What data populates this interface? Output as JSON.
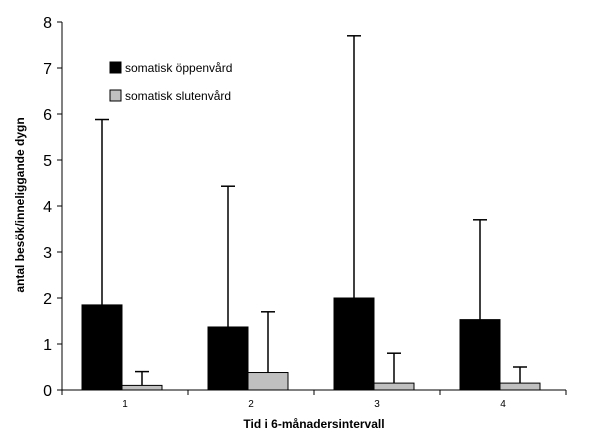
{
  "chart_data": {
    "type": "bar",
    "title": "",
    "xlabel": "Tid i 6-månadersintervall",
    "ylabel": "antal besök/inneliggande dygn",
    "categories": [
      "1",
      "2",
      "3",
      "4"
    ],
    "ylim": [
      0,
      8
    ],
    "yticks": [
      "0",
      "1",
      "2",
      "3",
      "4",
      "5",
      "6",
      "7",
      "8"
    ],
    "grid": false,
    "legend_position": "top-left",
    "error_bars": "upper",
    "series": [
      {
        "name": "somatisk öppenvård",
        "color": "#000000",
        "values": [
          1.85,
          1.37,
          2.0,
          1.53
        ],
        "error_upper": [
          5.88,
          4.43,
          7.7,
          3.7
        ]
      },
      {
        "name": "somatisk slutenvård",
        "color": "#c0c0c0",
        "values": [
          0.1,
          0.38,
          0.15,
          0.15
        ],
        "error_upper": [
          0.4,
          1.7,
          0.8,
          0.5
        ]
      }
    ]
  }
}
